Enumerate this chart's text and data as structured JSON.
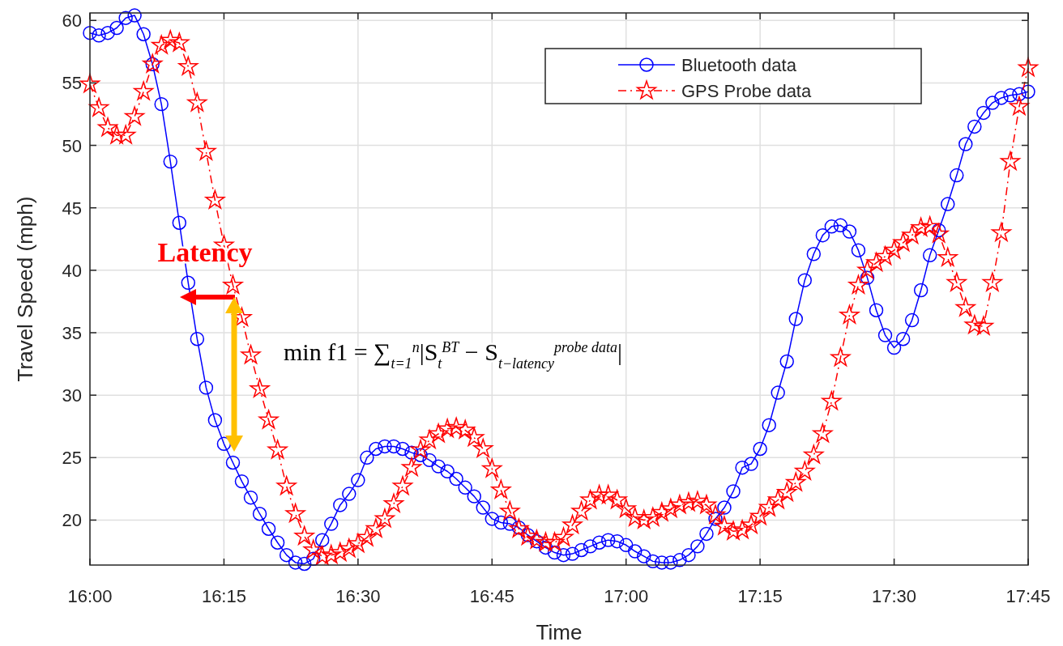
{
  "chart_data": {
    "type": "line",
    "xlabel": "Time",
    "ylabel": "Travel Speed (mph)",
    "xlim": [
      16,
      17.75
    ],
    "ylim": [
      16.4,
      60.6
    ],
    "xticks": [
      {
        "value": 16,
        "label": "16:00"
      },
      {
        "value": 16.25,
        "label": "16:15"
      },
      {
        "value": 16.5,
        "label": "16:30"
      },
      {
        "value": 16.75,
        "label": "16:45"
      },
      {
        "value": 17,
        "label": "17:00"
      },
      {
        "value": 17.25,
        "label": "17:15"
      },
      {
        "value": 17.5,
        "label": "17:30"
      },
      {
        "value": 17.75,
        "label": "17:45"
      }
    ],
    "yticks": [
      20,
      25,
      30,
      35,
      40,
      45,
      50,
      55,
      60
    ],
    "grid": true,
    "legend": "top right",
    "x": [
      16,
      16.0167,
      16.0333,
      16.05,
      16.0667,
      16.0833,
      16.1,
      16.1167,
      16.1333,
      16.15,
      16.1667,
      16.1833,
      16.2,
      16.2167,
      16.2333,
      16.25,
      16.2667,
      16.2833,
      16.3,
      16.3167,
      16.3333,
      16.35,
      16.3667,
      16.3833,
      16.4,
      16.4167,
      16.4333,
      16.45,
      16.4667,
      16.4833,
      16.5,
      16.5167,
      16.5333,
      16.55,
      16.5667,
      16.5833,
      16.6,
      16.6167,
      16.6333,
      16.65,
      16.6667,
      16.6833,
      16.7,
      16.7167,
      16.7333,
      16.75,
      16.7667,
      16.7833,
      16.8,
      16.8167,
      16.8333,
      16.85,
      16.8667,
      16.8833,
      16.9,
      16.9167,
      16.9333,
      16.95,
      16.9667,
      16.9833,
      17,
      17.0167,
      17.0333,
      17.05,
      17.0667,
      17.0833,
      17.1,
      17.1167,
      17.1333,
      17.15,
      17.1667,
      17.1833,
      17.2,
      17.2167,
      17.2333,
      17.25,
      17.2667,
      17.2833,
      17.3,
      17.3167,
      17.3333,
      17.35,
      17.3667,
      17.3833,
      17.4,
      17.4167,
      17.4333,
      17.45,
      17.4667,
      17.4833,
      17.5,
      17.5167,
      17.5333,
      17.55,
      17.5667,
      17.5833,
      17.6,
      17.6167,
      17.6333,
      17.65,
      17.6667,
      17.6833,
      17.7,
      17.7167,
      17.7333,
      17.75
    ],
    "series": [
      {
        "name": "Bluetooth data",
        "color": "#0000ff",
        "marker": "circle",
        "line_style": "solid",
        "values": [
          59.0,
          58.8,
          59.0,
          59.4,
          60.2,
          60.4,
          58.9,
          56.5,
          53.3,
          48.7,
          43.8,
          39.0,
          34.5,
          30.6,
          28.0,
          26.1,
          24.6,
          23.1,
          21.8,
          20.5,
          19.3,
          18.2,
          17.2,
          16.6,
          16.5,
          16.9,
          18.4,
          19.7,
          21.2,
          22.1,
          23.2,
          25.0,
          25.7,
          25.9,
          25.9,
          25.7,
          25.4,
          25.2,
          24.8,
          24.3,
          23.9,
          23.3,
          22.6,
          21.9,
          21.0,
          20.1,
          19.8,
          19.7,
          19.4,
          18.8,
          18.3,
          17.8,
          17.4,
          17.2,
          17.3,
          17.6,
          17.9,
          18.2,
          18.4,
          18.3,
          18.0,
          17.5,
          17.1,
          16.7,
          16.6,
          16.6,
          16.8,
          17.2,
          17.9,
          18.9,
          20.1,
          21.0,
          22.3,
          24.2,
          24.5,
          25.7,
          27.6,
          30.2,
          32.7,
          36.1,
          39.2,
          41.3,
          42.8,
          43.5,
          43.6,
          43.1,
          41.6,
          39.4,
          36.8,
          34.8,
          33.8,
          34.5,
          36.0,
          38.4,
          41.2,
          43.2,
          45.3,
          47.6,
          50.1,
          51.5,
          52.6,
          53.4,
          53.8,
          54.0,
          54.1,
          54.3
        ]
      },
      {
        "name": "GPS Probe data",
        "color": "#ff0000",
        "marker": "star",
        "line_style": "dashed",
        "values": [
          54.9,
          53.0,
          51.4,
          50.8,
          50.8,
          52.3,
          54.3,
          56.5,
          58.0,
          58.4,
          58.2,
          56.3,
          53.4,
          49.5,
          45.6,
          42.0,
          38.8,
          36.2,
          33.2,
          30.5,
          28.0,
          25.6,
          22.7,
          20.5,
          18.7,
          17.6,
          17.1,
          17.2,
          17.4,
          17.7,
          18.1,
          18.6,
          19.3,
          20.1,
          21.3,
          22.7,
          24.2,
          25.6,
          26.4,
          26.9,
          27.3,
          27.4,
          27.2,
          26.6,
          25.7,
          24.1,
          22.4,
          20.7,
          19.3,
          18.7,
          18.4,
          18.2,
          18.2,
          18.6,
          19.6,
          20.7,
          21.6,
          22.0,
          22.0,
          21.6,
          20.9,
          20.2,
          20.0,
          20.2,
          20.6,
          20.9,
          21.2,
          21.4,
          21.5,
          21.2,
          20.4,
          19.5,
          19.1,
          19.2,
          19.6,
          20.3,
          21.0,
          21.6,
          22.2,
          23.0,
          23.9,
          25.2,
          26.9,
          29.5,
          33.0,
          36.4,
          38.8,
          40.0,
          40.6,
          41.1,
          41.6,
          42.2,
          42.8,
          43.4,
          43.5,
          42.9,
          41.0,
          39.0,
          37.0,
          35.6,
          35.5,
          39.0,
          43.0,
          48.7,
          53.1,
          56.2
        ]
      }
    ],
    "annotations": [
      "Latency",
      "min f1 = ∑$_{t=1}$$^{n}$|S$_{t}$$^{BT}$ − S$_{t−latency}$$^{probe data}$|"
    ]
  }
}
